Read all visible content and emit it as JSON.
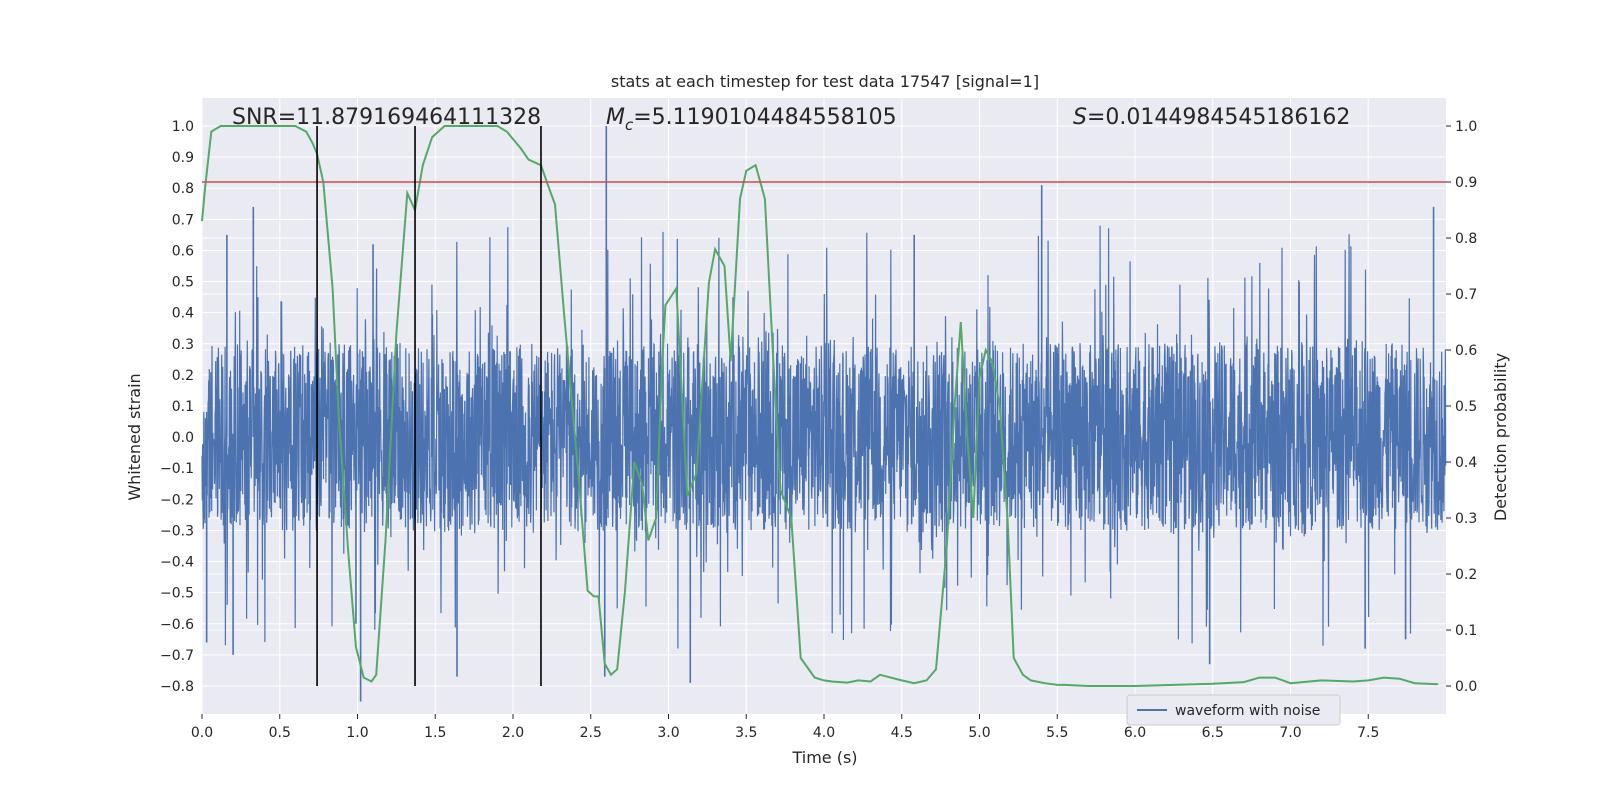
{
  "chart_data": {
    "type": "line",
    "title": "stats at each timestep for test data 17547 [signal=1]",
    "xlabel": "Time (s)",
    "ylabel": "Whitened strain",
    "y2label": "Detection probability",
    "xlim": [
      0,
      8
    ],
    "ylim": [
      -0.89,
      1.09
    ],
    "y2lim": [
      -0.05,
      1.05
    ],
    "xticks": [
      "0.0",
      "0.5",
      "1.0",
      "1.5",
      "2.0",
      "2.5",
      "3.0",
      "3.5",
      "4.0",
      "4.5",
      "5.0",
      "5.5",
      "6.0",
      "6.5",
      "7.0",
      "7.5"
    ],
    "yticks": [
      "1.0",
      "0.9",
      "0.8",
      "0.7",
      "0.6",
      "0.5",
      "0.4",
      "0.3",
      "0.2",
      "0.1",
      "0.0",
      "−0.1",
      "−0.2",
      "−0.3",
      "−0.4",
      "−0.5",
      "−0.6",
      "−0.7",
      "−0.8"
    ],
    "y2ticks": [
      "1.0",
      "0.9",
      "0.8",
      "0.7",
      "0.6",
      "0.5",
      "0.4",
      "0.3",
      "0.2",
      "0.1",
      "0.0"
    ],
    "grid": true,
    "legend": {
      "position": "lower-center",
      "entries": [
        "waveform with noise"
      ]
    },
    "annotations": {
      "snr": "SNR=11.879169464111328",
      "mc_symbol": "M",
      "mc_sub": "c",
      "mc_value": "=5.1190104484558105",
      "s_symbol": "S",
      "s_value": "=0.0144984545186162"
    },
    "threshold_y2": 0.9,
    "vertical_lines_x": [
      0.74,
      1.37,
      2.18
    ],
    "waveform": {
      "name": "waveform with noise",
      "n_samples": 4096,
      "envelope_low": -0.3,
      "envelope_high": 0.3,
      "spikes": [
        {
          "x": 0.33,
          "y": 0.74
        },
        {
          "x": 0.16,
          "y": 0.65
        },
        {
          "x": 0.03,
          "y": -0.66
        },
        {
          "x": 0.2,
          "y": -0.7
        },
        {
          "x": 1.02,
          "y": -0.85
        },
        {
          "x": 1.64,
          "y": -0.77
        },
        {
          "x": 2.6,
          "y": 1.0
        },
        {
          "x": 2.59,
          "y": -0.77
        },
        {
          "x": 3.14,
          "y": -0.79
        },
        {
          "x": 5.4,
          "y": 0.81
        },
        {
          "x": 6.48,
          "y": -0.73
        },
        {
          "x": 7.92,
          "y": 0.74
        },
        {
          "x": 7.74,
          "y": -0.65
        },
        {
          "x": 7.48,
          "y": -0.68
        },
        {
          "x": 4.58,
          "y": 0.65
        },
        {
          "x": 1.1,
          "y": 0.62
        },
        {
          "x": 0.99,
          "y": -0.6
        }
      ]
    },
    "probability": {
      "x": [
        0.0,
        0.02,
        0.06,
        0.12,
        0.2,
        0.3,
        0.4,
        0.5,
        0.6,
        0.67,
        0.71,
        0.74,
        0.78,
        0.84,
        0.88,
        0.94,
        0.99,
        1.04,
        1.09,
        1.12,
        1.18,
        1.25,
        1.32,
        1.37,
        1.42,
        1.48,
        1.56,
        1.64,
        1.72,
        1.8,
        1.9,
        1.96,
        2.05,
        2.1,
        2.18,
        2.23,
        2.27,
        2.33,
        2.42,
        2.48,
        2.52,
        2.55,
        2.59,
        2.63,
        2.67,
        2.72,
        2.78,
        2.83,
        2.87,
        2.92,
        2.96,
        2.98,
        3.05,
        3.12,
        3.18,
        3.26,
        3.3,
        3.36,
        3.4,
        3.46,
        3.5,
        3.56,
        3.62,
        3.68,
        3.72,
        3.79,
        3.85,
        3.94,
        4.0,
        4.05,
        4.15,
        4.22,
        4.3,
        4.36,
        4.43,
        4.5,
        4.58,
        4.66,
        4.72,
        4.79,
        4.84,
        4.88,
        4.92,
        4.96,
        5.0,
        5.04,
        5.08,
        5.13,
        5.18,
        5.22,
        5.28,
        5.33,
        5.42,
        5.5,
        5.55,
        5.7,
        6.0,
        6.5,
        6.7,
        6.8,
        6.9,
        7.0,
        7.2,
        7.4,
        7.5,
        7.6,
        7.7,
        7.8,
        7.95
      ],
      "y": [
        0.83,
        0.89,
        0.99,
        1.0,
        1.0,
        1.0,
        1.0,
        1.0,
        1.0,
        0.99,
        0.97,
        0.95,
        0.9,
        0.71,
        0.48,
        0.24,
        0.07,
        0.015,
        0.008,
        0.02,
        0.26,
        0.63,
        0.88,
        0.85,
        0.93,
        0.98,
        1.0,
        1.0,
        1.0,
        1.0,
        1.0,
        0.99,
        0.96,
        0.94,
        0.93,
        0.89,
        0.86,
        0.66,
        0.38,
        0.17,
        0.16,
        0.16,
        0.04,
        0.02,
        0.03,
        0.17,
        0.4,
        0.36,
        0.26,
        0.3,
        0.58,
        0.68,
        0.71,
        0.34,
        0.38,
        0.72,
        0.78,
        0.75,
        0.58,
        0.87,
        0.92,
        0.93,
        0.87,
        0.55,
        0.35,
        0.3,
        0.05,
        0.015,
        0.01,
        0.008,
        0.006,
        0.01,
        0.008,
        0.02,
        0.015,
        0.01,
        0.005,
        0.01,
        0.03,
        0.25,
        0.5,
        0.65,
        0.45,
        0.3,
        0.55,
        0.6,
        0.58,
        0.5,
        0.3,
        0.05,
        0.02,
        0.01,
        0.005,
        0.002,
        0.002,
        0.0,
        0.0,
        0.004,
        0.007,
        0.015,
        0.015,
        0.005,
        0.01,
        0.008,
        0.01,
        0.015,
        0.013,
        0.005,
        0.003
      ]
    },
    "colors": {
      "background": "#eaeaf2",
      "grid": "#ffffff",
      "waveform": "#4c72b0",
      "probability": "#55a868",
      "threshold": "#c44e52",
      "vlines": "#000000"
    }
  }
}
